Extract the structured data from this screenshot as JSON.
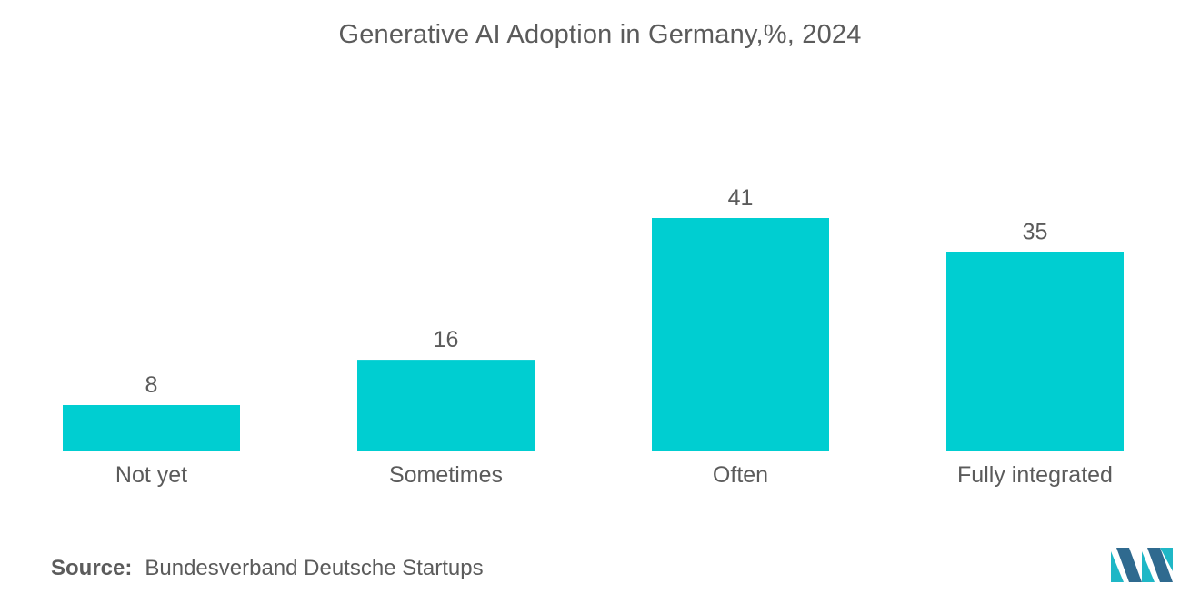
{
  "chart_data": {
    "type": "bar",
    "title": "Generative AI Adoption in Germany,%, 2024",
    "categories": [
      "Not yet",
      "Sometimes",
      "Often",
      "Fully integrated"
    ],
    "values": [
      8,
      16,
      41,
      35
    ],
    "xlabel": "",
    "ylabel": "",
    "ylim": [
      0,
      45
    ],
    "grid": false,
    "bar_color": "#00ced1"
  },
  "source": {
    "label": "Source:",
    "text": "Bundesverband Deutsche Startups"
  },
  "colors": {
    "text": "#5b5b5b",
    "logo_dark": "#2f6a8f",
    "logo_light": "#1fb7c6"
  }
}
